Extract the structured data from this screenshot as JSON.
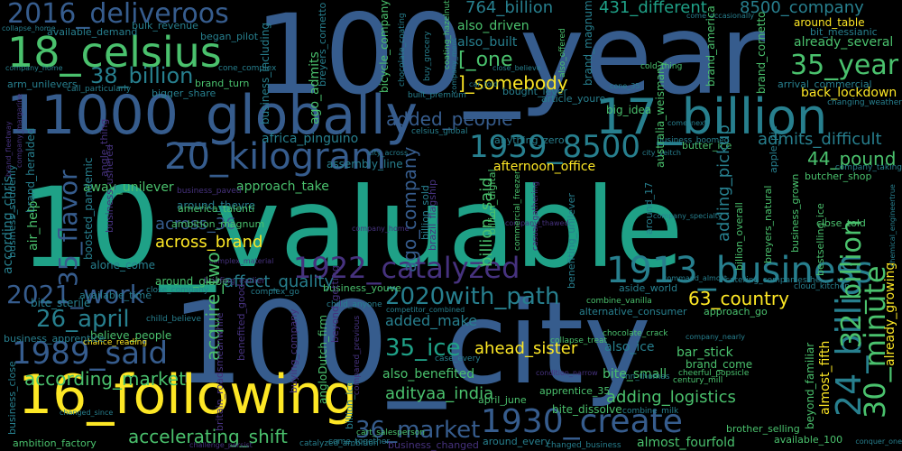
{
  "palette": {
    "background": "#000000",
    "indigo": "#46327e",
    "blue": "#365c8d",
    "teal": "#277f8e",
    "green": "#1fa187",
    "lime": "#4ac16d",
    "yellow": "#fde725",
    "purple": "#440154"
  },
  "words": [
    {
      "id": "w-10-valuable",
      "text": "10_valuable",
      "color": "#1fa187"
    },
    {
      "id": "w-100-city",
      "text": "100_city",
      "color": "#365c8d"
    },
    {
      "id": "w-100-year",
      "text": "100_year",
      "color": "#365c8d"
    },
    {
      "id": "w-11000-globally",
      "text": "11000_globally",
      "color": "#365c8d"
    },
    {
      "id": "w-18-celsius",
      "text": "18_celsius",
      "color": "#4ac16d"
    },
    {
      "id": "w-16-following",
      "text": "16_following",
      "color": "#fde725"
    },
    {
      "id": "w-17-billion",
      "text": "17_billion",
      "color": "#277f8e"
    },
    {
      "id": "w-1939-8500",
      "text": "1939_8500",
      "color": "#277f8e"
    },
    {
      "id": "w-1913-business",
      "text": "1913_business",
      "color": "#277f8e"
    },
    {
      "id": "w-1922-catalyzed",
      "text": "1922_catalyzed",
      "color": "#46327e"
    },
    {
      "id": "w-1930-create",
      "text": "1930_create",
      "color": "#365c8d"
    },
    {
      "id": "w-2016-deliveroos",
      "text": "2016_deliveroos",
      "color": "#365c8d"
    },
    {
      "id": "w-20-kilogram",
      "text": "20_kilogram",
      "color": "#365c8d"
    },
    {
      "id": "w-38-billion",
      "text": "38_billion",
      "color": "#277f8e"
    },
    {
      "id": "w-35-flavor",
      "text": "35_flavor",
      "color": "#365c8d"
    },
    {
      "id": "w-2021-work",
      "text": "2021_work",
      "color": "#365c8d"
    },
    {
      "id": "w-2020with-path",
      "text": "2020with_path",
      "color": "#277f8e"
    },
    {
      "id": "w-26-april",
      "text": "26_april",
      "color": "#277f8e"
    },
    {
      "id": "w-1989-said",
      "text": "1989_said",
      "color": "#365c8d"
    },
    {
      "id": "w-35-year",
      "text": "35_year",
      "color": "#4ac16d"
    },
    {
      "id": "w-44-pound",
      "text": "44_pound",
      "color": "#4ac16d"
    },
    {
      "id": "w-63-country",
      "text": "63_country",
      "color": "#fde725"
    },
    {
      "id": "w-35-ice",
      "text": "35_ice",
      "color": "#1fa187"
    },
    {
      "id": "w-36-market",
      "text": "36_market",
      "color": "#365c8d"
    },
    {
      "id": "w-764-billion",
      "text": "764_billion",
      "color": "#277f8e"
    },
    {
      "id": "w-431-different",
      "text": "431_different",
      "color": "#1fa187"
    },
    {
      "id": "w-8500-company",
      "text": "8500_company",
      "color": "#277f8e"
    },
    {
      "id": "w-one",
      "text": "[_one",
      "color": "#4ac16d"
    },
    {
      "id": "w-somebody",
      "text": "]_somebody",
      "color": "#fde725"
    },
    {
      "id": "w-added-people",
      "text": "added_people",
      "color": "#365c8d"
    },
    {
      "id": "w-added-make",
      "text": "added_make",
      "color": "#277f8e"
    },
    {
      "id": "w-across-36",
      "text": "across_36",
      "color": "#365c8d"
    },
    {
      "id": "w-across-brand",
      "text": "across_brand",
      "color": "#fde725"
    },
    {
      "id": "w-affect-quality",
      "text": "affect_quality",
      "color": "#277f8e"
    },
    {
      "id": "w-africa-pinguino",
      "text": "africa_pinguino",
      "color": "#277f8e"
    },
    {
      "id": "w-afternoon-office",
      "text": "afternoon_office",
      "color": "#fde725"
    },
    {
      "id": "w-ahead-sister",
      "text": "ahead_sister",
      "color": "#fde725"
    },
    {
      "id": "w-admits-difficult",
      "text": "admits_difficult",
      "color": "#277f8e"
    },
    {
      "id": "w-adityaa-india",
      "text": "adityaa_india",
      "color": "#4ac16d"
    },
    {
      "id": "w-according-market",
      "text": "according_market",
      "color": "#4ac16d"
    },
    {
      "id": "w-accelerating-shift",
      "text": "accelerating_shift",
      "color": "#4ac16d"
    },
    {
      "id": "w-adding-logistics",
      "text": "adding_logistics",
      "color": "#4ac16d"
    },
    {
      "id": "w-also-benefited",
      "text": "also_benefited",
      "color": "#4ac16d"
    },
    {
      "id": "w-almost-fourfold",
      "text": "almost_fourfold",
      "color": "#4ac16d"
    },
    {
      "id": "w-already-several",
      "text": "already_several",
      "color": "#4ac16d"
    },
    {
      "id": "w-also-driven",
      "text": "also_driven",
      "color": "#4ac16d"
    },
    {
      "id": "w-also-built",
      "text": "also_built",
      "color": "#277f8e"
    },
    {
      "id": "w-around-table",
      "text": "around_table",
      "color": "#fde725"
    },
    {
      "id": "w-back-lockdown",
      "text": "back_lockdown",
      "color": "#fde725"
    },
    {
      "id": "w-bought-lever",
      "text": "bought_lever",
      "color": "#277f8e"
    },
    {
      "id": "w-big-idea",
      "text": "big_idea",
      "color": "#4ac16d"
    },
    {
      "id": "w-ago-admits",
      "text": "ago_admits",
      "color": "#4ac16d"
    },
    {
      "id": "w-away-unilever",
      "text": "away_unilever",
      "color": "#4ac16d"
    },
    {
      "id": "w-around-theyre",
      "text": "around_theyre",
      "color": "#277f8e"
    },
    {
      "id": "w-approach-take",
      "text": "approach_take",
      "color": "#4ac16d"
    },
    {
      "id": "w-assembly-line",
      "text": "assembly_line",
      "color": "#277f8e"
    },
    {
      "id": "w-alone-come",
      "text": "alone_come",
      "color": "#277f8e"
    },
    {
      "id": "w-around-globe",
      "text": "around_globe",
      "color": "#4ac16d"
    },
    {
      "id": "w-bite-sterile",
      "text": "bite_sterile",
      "color": "#277f8e"
    },
    {
      "id": "w-believe-people",
      "text": "believe_people",
      "color": "#4ac16d"
    },
    {
      "id": "w-bite-small",
      "text": "bite_small",
      "color": "#4ac16d"
    },
    {
      "id": "w-bite-dissolve",
      "text": "bite_dissolve",
      "color": "#4ac16d"
    },
    {
      "id": "w-also-ice",
      "text": "also_ice",
      "color": "#277f8e"
    },
    {
      "id": "w-bar-stick",
      "text": "bar_stick",
      "color": "#4ac16d"
    },
    {
      "id": "w-brand-come",
      "text": "brand_come",
      "color": "#4ac16d"
    },
    {
      "id": "w-air-help",
      "text": "air_help",
      "color": "#4ac16d"
    },
    {
      "id": "w-butter-ice",
      "text": "butter_ice",
      "color": "#4ac16d"
    },
    {
      "id": "w-close-told",
      "text": "close_told",
      "color": "#4ac16d"
    },
    {
      "id": "w-approach-go",
      "text": "approach_go",
      "color": "#4ac16d"
    },
    {
      "id": "w-butcher-shop",
      "text": "butcher_shop",
      "color": "#4ac16d"
    },
    {
      "id": "w-brother-selling",
      "text": "brother_selling",
      "color": "#4ac16d"
    },
    {
      "id": "w-ambition-factory",
      "text": "ambition_factory",
      "color": "#4ac16d"
    },
    {
      "id": "w-available-100",
      "text": "available_100",
      "color": "#4ac16d"
    },
    {
      "id": "w-cart-salesperson",
      "text": "cart_salesperson",
      "color": "#4ac16d"
    },
    {
      "id": "w-apprentice-35",
      "text": "apprentice_35",
      "color": "#4ac16d"
    },
    {
      "id": "w-april-june",
      "text": "april_june",
      "color": "#4ac16d"
    },
    {
      "id": "w-ambition-magnum",
      "text": "ambition_magnum",
      "color": "#4ac16d"
    },
    {
      "id": "w-america-talenti",
      "text": "america_talenti",
      "color": "#4ac16d"
    },
    {
      "id": "w-available-demand",
      "text": "available_demand",
      "color": "#277f8e"
    },
    {
      "id": "w-began-pilot",
      "text": "began_pilot",
      "color": "#277f8e"
    },
    {
      "id": "w-brand-turn",
      "text": "brand_turn",
      "color": "#4ac16d"
    },
    {
      "id": "w-bigger-share",
      "text": "bigger_share",
      "color": "#277f8e"
    },
    {
      "id": "w-available-time",
      "text": "available_time",
      "color": "#277f8e"
    },
    {
      "id": "w-chance-reading",
      "text": "chance_reading",
      "color": "#fde725"
    },
    {
      "id": "w-business-apprentice",
      "text": "business_apprentice",
      "color": "#277f8e"
    },
    {
      "id": "w-according-chris",
      "text": "according_chris",
      "color": "#277f8e"
    },
    {
      "id": "w-arm-unilevers",
      "text": "arm_unilevers",
      "color": "#277f8e"
    },
    {
      "id": "w-call-particularly",
      "text": "call_particularly",
      "color": "#277f8e"
    },
    {
      "id": "w-brand-heralded",
      "text": "brand_heralded",
      "color": "#277f8e"
    },
    {
      "id": "w-business-youve",
      "text": "business_youve",
      "color": "#4ac16d"
    },
    {
      "id": "w-chocolate-crack",
      "text": "chocolate_crack",
      "color": "#4ac16d"
    },
    {
      "id": "w-century-mill",
      "text": "century_mill",
      "color": "#4ac16d"
    },
    {
      "id": "w-angloDutch-firm",
      "text": "angloDutch_firm",
      "color": "#4ac16d"
    },
    {
      "id": "w-beyond-familiar",
      "text": "beyond_familiar",
      "color": "#4ac16d"
    },
    {
      "id": "w-almost-fifth",
      "text": "almost_fifth",
      "color": "#fde725"
    },
    {
      "id": "w-adding-pickup",
      "text": "adding_pickup",
      "color": "#277f8e"
    },
    {
      "id": "w-already-growing",
      "text": "already_growing",
      "color": "#fde725"
    },
    {
      "id": "w-24-billion",
      "text": "24_billion",
      "color": "#277f8e"
    },
    {
      "id": "w-30-minute",
      "text": "30_minute",
      "color": "#4ac16d"
    },
    {
      "id": "w-32-billion",
      "text": "32_billion",
      "color": "#4ac16d"
    },
    {
      "id": "w-acquire-two",
      "text": "acquire_two",
      "color": "#4ac16d"
    },
    {
      "id": "w-ago-company",
      "text": "ago_company",
      "color": "#365c8d"
    },
    {
      "id": "w-billion-said",
      "text": "billion_said",
      "color": "#4ac16d"
    },
    {
      "id": "w-brand-america",
      "text": "brand_america",
      "color": "#4ac16d"
    },
    {
      "id": "w-brand-cornetto",
      "text": "brand_cornetto",
      "color": "#4ac16d"
    },
    {
      "id": "w-brand-magnum",
      "text": "brand_magnum",
      "color": "#277f8e"
    },
    {
      "id": "w-bicycle-company",
      "text": "bicycle_company",
      "color": "#4ac16d"
    },
    {
      "id": "w-business-including",
      "text": "business_including",
      "color": "#277f8e"
    },
    {
      "id": "w-bulk-revenue",
      "text": "bulk_revenue",
      "color": "#277f8e"
    },
    {
      "id": "w-australia-weismany",
      "text": "australia_weismany",
      "color": "#4ac16d"
    },
    {
      "id": "w-bit-messianic",
      "text": "bit_messianic",
      "color": "#277f8e"
    },
    {
      "id": "w-arrival-commercial",
      "text": "arrival_commercial",
      "color": "#277f8e"
    },
    {
      "id": "w-also-offered",
      "text": "also_offered",
      "color": "#4ac16d"
    },
    {
      "id": "w-breyers-natural",
      "text": "breyers_natural",
      "color": "#4ac16d"
    },
    {
      "id": "w-bestselling-ice",
      "text": "bestselling_ice",
      "color": "#4ac16d"
    },
    {
      "id": "w-business-grown",
      "text": "business_grown",
      "color": "#4ac16d"
    },
    {
      "id": "w-billion-overall",
      "text": "billion_overall",
      "color": "#4ac16d"
    },
    {
      "id": "w-billion-digital",
      "text": "billion_digital",
      "color": "#4ac16d"
    },
    {
      "id": "w-benefiting-unilever",
      "text": "benefiting_unilever",
      "color": "#277f8e"
    },
    {
      "id": "w-business-boomed",
      "text": "business_boomed",
      "color": "#277f8e"
    },
    {
      "id": "w-aside-world",
      "text": "aside_world",
      "color": "#277f8e"
    },
    {
      "id": "w-alternative-consumer",
      "text": "alternative_consumer",
      "color": "#277f8e"
    },
    {
      "id": "w-combine-vanilla",
      "text": "combine_vanilla",
      "color": "#4ac16d"
    },
    {
      "id": "w-anything-zero",
      "text": "anything_zero",
      "color": "#277f8e"
    },
    {
      "id": "w-article-youre",
      "text": "article_youre",
      "color": "#277f8e"
    },
    {
      "id": "w-apple-pie",
      "text": "apple_pie",
      "color": "#277f8e"
    },
    {
      "id": "w-around-17",
      "text": "around_17",
      "color": "#277f8e"
    },
    {
      "id": "w-billion-ice",
      "text": "billion_ice",
      "color": "#277f8e"
    },
    {
      "id": "w-billion-sold",
      "text": "billion_sold",
      "color": "#277f8e"
    },
    {
      "id": "w-boosted-pandemic",
      "text": "boosted_pandemic",
      "color": "#277f8e"
    },
    {
      "id": "w-business-suddenly",
      "text": "business_suddenly",
      "color": "#277f8e"
    },
    {
      "id": "w-business-ushered",
      "text": "business_ushered",
      "color": "#46327e"
    },
    {
      "id": "w-business-paved",
      "text": "business_paved",
      "color": "#46327e"
    },
    {
      "id": "w-briefing-earlier",
      "text": "briefing_earlier",
      "color": "#46327e"
    },
    {
      "id": "w-beyond-getting",
      "text": "beyond_getting",
      "color": "#46327e"
    },
    {
      "id": "w-compared-previous",
      "text": "compared_previous",
      "color": "#46327e"
    },
    {
      "id": "w-britain-roadsmeanwhile",
      "text": "britain_roadsmeanwhile",
      "color": "#46327e"
    },
    {
      "id": "w-benefited-good",
      "text": "benefited_good",
      "color": "#46327e"
    },
    {
      "id": "w-buying-company",
      "text": "buying_company",
      "color": "#46327e"
    },
    {
      "id": "w-business-changed",
      "text": "business_changed",
      "color": "#46327e"
    },
    {
      "id": "w-built-premium",
      "text": "built_premium",
      "color": "#277f8e"
    },
    {
      "id": "w-celsius-global",
      "text": "celsius_global",
      "color": "#277f8e"
    },
    {
      "id": "w-catalyzed-ambition",
      "text": "catalyzed_ambition",
      "color": "#277f8e"
    },
    {
      "id": "w-come-together",
      "text": "come_together",
      "color": "#277f8e"
    },
    {
      "id": "w-around-every",
      "text": "around_every",
      "color": "#277f8e"
    },
    {
      "id": "w-changed-business",
      "text": "changed_business",
      "color": "#277f8e"
    },
    {
      "id": "w-conquer-one",
      "text": "conquer_one",
      "color": "#277f8e"
    },
    {
      "id": "w-combine-milk",
      "text": "combine_milk",
      "color": "#277f8e"
    },
    {
      "id": "w-cnn-thomas",
      "text": "cnn_thomas",
      "color": "#277f8e"
    },
    {
      "id": "w-condition-narrow",
      "text": "condition_narrow",
      "color": "#46327e"
    },
    {
      "id": "w-case-every",
      "text": "case_every",
      "color": "#277f8e"
    },
    {
      "id": "w-competitor-combined",
      "text": "competitor_combined",
      "color": "#277f8e"
    },
    {
      "id": "w-chilld-anyone",
      "text": "chilld_anyone",
      "color": "#277f8e"
    },
    {
      "id": "w-chilld-believe",
      "text": "chilld_believe",
      "color": "#277f8e"
    },
    {
      "id": "w-close-company",
      "text": "close_company",
      "color": "#277f8e"
    },
    {
      "id": "w-complex-go",
      "text": "complex_go",
      "color": "#277f8e"
    },
    {
      "id": "w-complex-material",
      "text": "complex_material",
      "color": "#46327e"
    },
    {
      "id": "w-cloud-kitchen",
      "text": "cloud_kitchen",
      "color": "#277f8e"
    },
    {
      "id": "w-catering-companiesthe",
      "text": "catering_companiesthe",
      "color": "#277f8e"
    },
    {
      "id": "w-command-almost",
      "text": "command_almost",
      "color": "#277f8e"
    },
    {
      "id": "w-chemical-engineertrue",
      "text": "chemical_engineertrue",
      "color": "#277f8e"
    },
    {
      "id": "w-company-taking",
      "text": "company_taking",
      "color": "#277f8e"
    },
    {
      "id": "w-company-nearly",
      "text": "company_nearly",
      "color": "#277f8e"
    },
    {
      "id": "w-cheerful-popsicle",
      "text": "cheerful_popsicle",
      "color": "#4ac16d"
    },
    {
      "id": "w-company-specialty",
      "text": "company_specialty",
      "color": "#277f8e"
    },
    {
      "id": "w-city-veitch",
      "text": "city_veitch",
      "color": "#277f8e"
    },
    {
      "id": "w-come-next",
      "text": "come_next",
      "color": "#277f8e"
    },
    {
      "id": "w-cold-thing",
      "text": "cold_thing",
      "color": "#4ac16d"
    },
    {
      "id": "w-changing-weather",
      "text": "changing_weather",
      "color": "#277f8e"
    },
    {
      "id": "w-come-occasionally",
      "text": "come_occasionally",
      "color": "#277f8e"
    },
    {
      "id": "w-chocolate-coating",
      "text": "chocolate_coating",
      "color": "#277f8e"
    },
    {
      "id": "w-coating-hazelnut",
      "text": "coating_hazelnut",
      "color": "#4ac16d"
    },
    {
      "id": "w-car-told",
      "text": "car_told",
      "color": "#277f8e"
    },
    {
      "id": "w-close-believe",
      "text": "close_believe",
      "color": "#277f8e"
    },
    {
      "id": "w-cone-35",
      "text": "cone_35",
      "color": "#277f8e"
    },
    {
      "id": "w-buy-grocery",
      "text": "buy_grocery",
      "color": "#277f8e"
    },
    {
      "id": "w-cone-complex",
      "text": "cone_complex",
      "color": "#277f8e"
    },
    {
      "id": "w-breyers-cornetto",
      "text": "breyers_cornetto",
      "color": "#277f8e"
    },
    {
      "id": "w-angle-thing",
      "text": "angle_thing",
      "color": "#46327e"
    },
    {
      "id": "w-company-home",
      "text": "company_home",
      "color": "#277f8e"
    },
    {
      "id": "w-company-ment",
      "text": "company_ment",
      "color": "#277f8e"
    },
    {
      "id": "w-collapse-home",
      "text": "collapse_home",
      "color": "#277f8e"
    },
    {
      "id": "w-city-across",
      "text": "city_across",
      "color": "#277f8e"
    },
    {
      "id": "w-brand-fleetway",
      "text": "brand_fleetway",
      "color": "#46327e"
    },
    {
      "id": "w-company-margarine",
      "text": "company_margarine",
      "color": "#46327e"
    },
    {
      "id": "w-company-thawed",
      "text": "company_thawed",
      "color": "#46327e"
    },
    {
      "id": "w-company-home2",
      "text": "company_home",
      "color": "#46327e"
    },
    {
      "id": "w-business-close",
      "text": "business_close",
      "color": "#277f8e"
    },
    {
      "id": "w-changed-since",
      "text": "changed_since",
      "color": "#277f8e"
    },
    {
      "id": "w-collapse-treat",
      "text": "collapse_treat",
      "color": "#4ac16d"
    },
    {
      "id": "w-commercial-freezer",
      "text": "commercial_freezer",
      "color": "#4ac16d"
    },
    {
      "id": "w-brazil-flagship",
      "text": "brazil_flagship",
      "color": "#46327e"
    },
    {
      "id": "w-challenge-persist",
      "text": "challenge_persist",
      "color": "#46327e"
    },
    {
      "id": "w-casual-gathering",
      "text": "casual_gathering",
      "color": "#46327e"
    }
  ]
}
